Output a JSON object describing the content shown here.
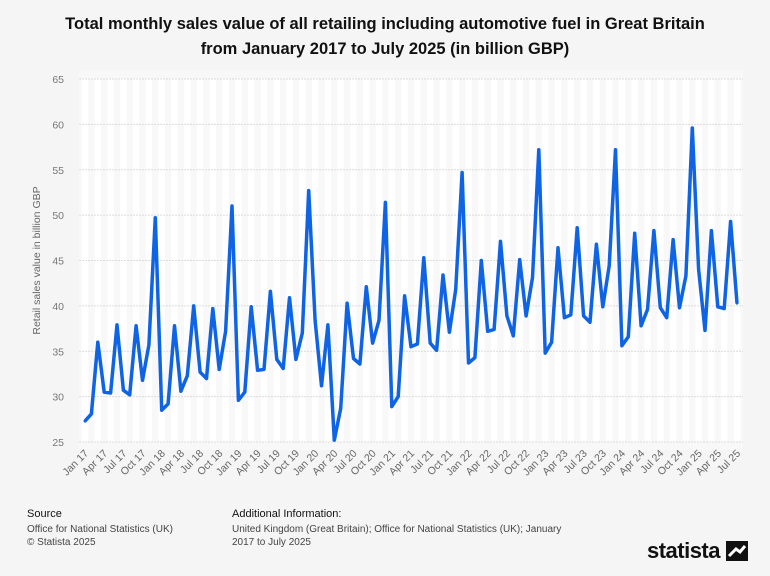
{
  "chart_data": {
    "type": "line",
    "title": "Total monthly sales value of all retailing including automotive fuel in Great Britain from January 2017 to July 2025 (in billion GBP)",
    "title_lines": [
      "Total monthly sales value of all retailing including automotive fuel in Great Britain",
      "from January 2017 to July 2025 (in billion GBP)"
    ],
    "xlabel": "",
    "ylabel": "Retail sales value in billion GBP",
    "ylim": [
      25,
      65
    ],
    "yticks": [
      25,
      30,
      35,
      40,
      45,
      50,
      55,
      60,
      65
    ],
    "grid": true,
    "x_tick_labels": [
      "Jan 17",
      "Apr 17",
      "Jul 17",
      "Oct 17",
      "Jan 18",
      "Apr 18",
      "Jul 18",
      "Oct 18",
      "Jan 19",
      "Apr 19",
      "Jul 19",
      "Oct 19",
      "Jan 20",
      "Apr 20",
      "Jul 20",
      "Oct 20",
      "Jan 21",
      "Apr 21",
      "Jul 21",
      "Oct 21",
      "Jan 22",
      "Apr 22",
      "Jul 22",
      "Oct 22",
      "Jan 23",
      "Apr 23",
      "Jul 23",
      "Oct 23",
      "Jan 24",
      "Apr 24",
      "Jul 24",
      "Oct 24",
      "Jan 25",
      "Apr 25",
      "Jul 25"
    ],
    "start": "Jan 2017",
    "end": "Jul 2025",
    "series": [
      {
        "name": "Retail sales value",
        "color": "#0f64e6",
        "values": [
          27.3,
          28.1,
          36.0,
          30.5,
          30.4,
          37.9,
          30.7,
          30.2,
          37.8,
          31.8,
          35.7,
          49.7,
          28.5,
          29.2,
          37.8,
          30.6,
          32.3,
          40.0,
          32.7,
          32.0,
          39.7,
          33.0,
          37.2,
          51.0,
          29.6,
          30.5,
          39.9,
          32.9,
          33.0,
          41.6,
          34.1,
          33.1,
          40.9,
          34.1,
          37.0,
          52.7,
          38.4,
          31.2,
          37.9,
          25.2,
          28.7,
          40.3,
          34.2,
          33.6,
          42.1,
          35.9,
          38.4,
          51.4,
          28.9,
          30.0,
          41.1,
          35.5,
          35.8,
          45.3,
          35.9,
          35.1,
          43.4,
          37.1,
          41.8,
          54.7,
          33.7,
          34.3,
          45.0,
          37.2,
          37.4,
          47.1,
          38.9,
          36.7,
          45.1,
          38.9,
          43.1,
          57.2,
          34.8,
          36.0,
          46.4,
          38.7,
          39.0,
          48.6,
          38.9,
          38.2,
          46.8,
          39.9,
          44.4,
          57.2,
          35.6,
          36.6,
          48.0,
          37.8,
          39.6,
          48.3,
          39.8,
          38.7,
          47.3,
          39.8,
          43.3,
          59.6,
          44.0,
          37.3,
          48.3,
          39.9,
          39.7,
          49.3,
          40.3
        ]
      }
    ]
  },
  "footer": {
    "source_heading": "Source",
    "source_lines": [
      "Office for National Statistics (UK)",
      "© Statista 2025"
    ],
    "info_heading": "Additional Information:",
    "info_lines": [
      "United Kingdom (Great Britain); Office for National Statistics (UK); January",
      "2017 to July 2025"
    ]
  },
  "logo": {
    "text": "statista"
  }
}
